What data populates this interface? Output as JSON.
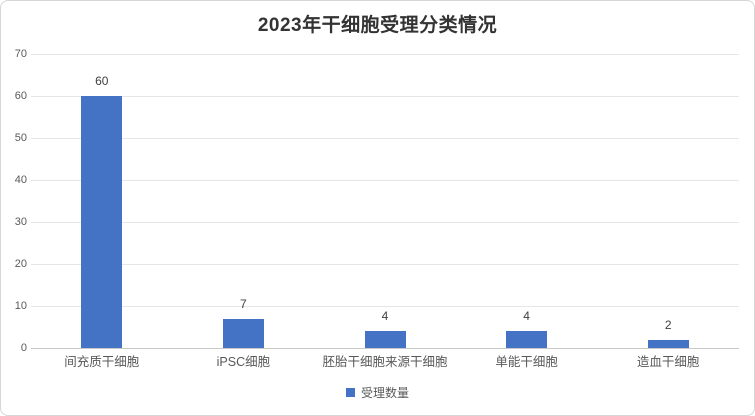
{
  "chart_data": {
    "type": "bar",
    "title": "2023年干细胞受理分类情况",
    "categories": [
      "间充质干细胞",
      "iPSC细胞",
      "胚胎干细胞来源干细胞",
      "单能干细胞",
      "造血干细胞"
    ],
    "values": [
      60,
      7,
      4,
      4,
      2
    ],
    "series": [
      {
        "name": "受理数量",
        "values": [
          60,
          7,
          4,
          4,
          2
        ]
      }
    ],
    "series_name": "受理数量",
    "xlabel": "",
    "ylabel": "",
    "ylim": [
      0,
      70
    ],
    "yticks": [
      0,
      10,
      20,
      30,
      40,
      50,
      60,
      70
    ],
    "grid": true,
    "data_labels": true,
    "legend_position": "bottom",
    "colors": {
      "bar": "#4472C4",
      "gridline": "#e6e6e6",
      "axis_line": "#c9c9c9",
      "title_text": "#333333",
      "tick_text": "#595959",
      "data_label_text": "#404040"
    }
  }
}
